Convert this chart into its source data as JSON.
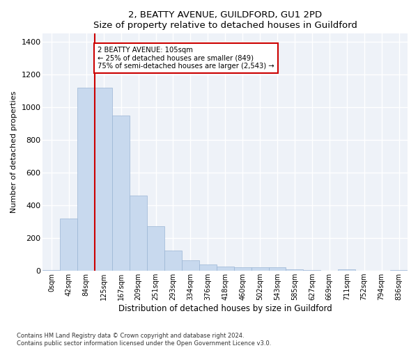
{
  "title1": "2, BEATTY AVENUE, GUILDFORD, GU1 2PD",
  "title2": "Size of property relative to detached houses in Guildford",
  "xlabel": "Distribution of detached houses by size in Guildford",
  "ylabel": "Number of detached properties",
  "bar_color": "#c8d9ee",
  "bar_edge_color": "#9ab5d5",
  "background_color": "#eef2f8",
  "grid_color": "#ffffff",
  "annotation_line1": "2 BEATTY AVENUE: 105sqm",
  "annotation_line2": "← 25% of detached houses are smaller (849)",
  "annotation_line3": "75% of semi-detached houses are larger (2,543) →",
  "vline_color": "#cc0000",
  "vline_x_idx": 2.5,
  "footer1": "Contains HM Land Registry data © Crown copyright and database right 2024.",
  "footer2": "Contains public sector information licensed under the Open Government Licence v3.0.",
  "categories": [
    "0sqm",
    "42sqm",
    "84sqm",
    "125sqm",
    "167sqm",
    "209sqm",
    "251sqm",
    "293sqm",
    "334sqm",
    "376sqm",
    "418sqm",
    "460sqm",
    "502sqm",
    "543sqm",
    "585sqm",
    "627sqm",
    "669sqm",
    "711sqm",
    "752sqm",
    "794sqm",
    "836sqm"
  ],
  "values": [
    5,
    320,
    1120,
    1120,
    950,
    460,
    275,
    125,
    65,
    40,
    25,
    20,
    20,
    20,
    10,
    5,
    0,
    10,
    0,
    0,
    5
  ],
  "ylim": [
    0,
    1450
  ],
  "yticks": [
    0,
    200,
    400,
    600,
    800,
    1000,
    1200,
    1400
  ]
}
